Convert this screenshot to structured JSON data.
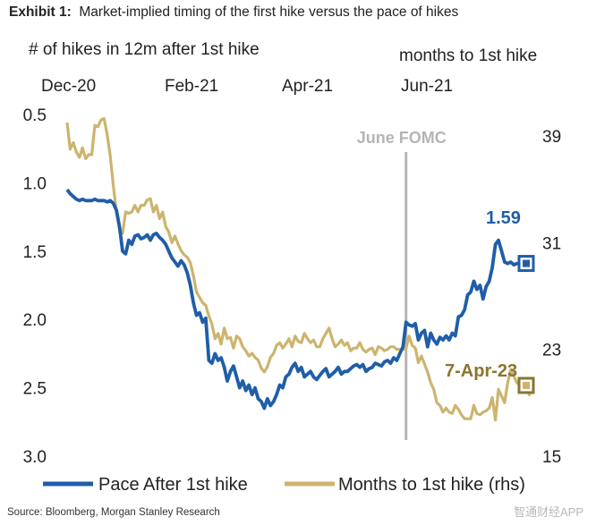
{
  "title_prefix": "Exhibit 1:",
  "title_text": "Market-implied timing of the first hike versus the pace of hikes",
  "source": "Source: Bloomberg, Morgan Stanley Research",
  "watermark": "智通财经APP",
  "chart_data": {
    "type": "line",
    "left_axis_title": "# of hikes in 12m after 1st hike",
    "right_axis_title": "months to 1st hike",
    "x_labels": [
      "Dec-20",
      "Feb-21",
      "Apr-21",
      "Jun-21"
    ],
    "left_ticks": [
      "0.5",
      "1.0",
      "1.5",
      "2.0",
      "2.5",
      "3.0"
    ],
    "right_ticks": [
      "39",
      "31",
      "23",
      "15"
    ],
    "left_ylim": [
      0.5,
      3.0
    ],
    "left_inverted": true,
    "right_ylim": [
      15,
      39
    ],
    "vline_label": "June FOMC",
    "vline_index": 110,
    "colors": {
      "pace": "#1f5ea8",
      "months": "#cdb46e",
      "vline": "#b5b5b5",
      "annotation_months": "#8a7530"
    },
    "series": [
      {
        "name": "Pace After 1st hike",
        "axis": "left",
        "end_label": "1.59",
        "values": [
          1.05,
          1.08,
          1.1,
          1.12,
          1.13,
          1.12,
          1.13,
          1.13,
          1.13,
          1.12,
          1.13,
          1.13,
          1.13,
          1.14,
          1.13,
          1.15,
          1.2,
          1.32,
          1.5,
          1.52,
          1.42,
          1.45,
          1.39,
          1.38,
          1.41,
          1.4,
          1.38,
          1.42,
          1.38,
          1.37,
          1.4,
          1.42,
          1.45,
          1.5,
          1.55,
          1.58,
          1.61,
          1.57,
          1.6,
          1.66,
          1.75,
          1.88,
          1.97,
          1.95,
          2.02,
          1.99,
          2.3,
          2.32,
          2.25,
          2.3,
          2.28,
          2.35,
          2.45,
          2.38,
          2.34,
          2.42,
          2.5,
          2.45,
          2.52,
          2.48,
          2.55,
          2.5,
          2.58,
          2.6,
          2.65,
          2.58,
          2.63,
          2.6,
          2.55,
          2.48,
          2.5,
          2.42,
          2.4,
          2.35,
          2.32,
          2.38,
          2.35,
          2.42,
          2.4,
          2.38,
          2.42,
          2.44,
          2.41,
          2.38,
          2.36,
          2.42,
          2.4,
          2.38,
          2.35,
          2.4,
          2.38,
          2.38,
          2.36,
          2.34,
          2.33,
          2.35,
          2.33,
          2.38,
          2.36,
          2.35,
          2.32,
          2.33,
          2.34,
          2.31,
          2.3,
          2.32,
          2.28,
          2.3,
          2.25,
          2.2,
          2.02,
          2.04,
          2.05,
          2.03,
          2.15,
          2.1,
          2.08,
          2.2,
          2.1,
          2.15,
          2.18,
          2.13,
          2.15,
          2.12,
          2.15,
          2.1,
          2.12,
          1.98,
          1.97,
          1.93,
          1.82,
          1.8,
          1.72,
          1.78,
          1.75,
          1.85,
          1.76,
          1.72,
          1.62,
          1.45,
          1.42,
          1.5,
          1.58,
          1.59,
          1.58,
          1.6,
          1.59,
          1.59,
          1.59,
          1.59
        ]
      },
      {
        "name": "Months to 1st hike (rhs)",
        "axis": "right",
        "end_label": "7-Apr-23",
        "values": [
          40,
          38,
          38.5,
          37.8,
          37.4,
          38.1,
          37.3,
          37.6,
          37.6,
          39.8,
          39.7,
          40.2,
          40.3,
          39.1,
          37.5,
          35.3,
          33.3,
          32,
          31.7,
          33.3,
          33.2,
          33.3,
          33.8,
          33.3,
          33.8,
          33.8,
          34.2,
          34.3,
          33.3,
          33.8,
          32.8,
          33.3,
          32.2,
          31.8,
          31,
          31.5,
          30.9,
          30.4,
          30.1,
          29.9,
          29.5,
          28.5,
          27.3,
          26.9,
          26.5,
          26.3,
          25.5,
          24.9,
          23.8,
          24.2,
          23.4,
          24.6,
          23.8,
          23.9,
          23.1,
          24,
          23.8,
          23.2,
          22.9,
          22.5,
          22.7,
          22.4,
          22.2,
          21.6,
          21.3,
          21.7,
          22.4,
          22.7,
          23.3,
          23.5,
          23.1,
          23.4,
          23.8,
          23.2,
          24,
          23.6,
          23.5,
          24.2,
          23.8,
          23.5,
          23.7,
          23.2,
          23.2,
          23.8,
          24.2,
          24.6,
          23.8,
          23.2,
          23.4,
          23.7,
          23.3,
          23.5,
          22.9,
          23.1,
          23.1,
          23.5,
          23,
          22.8,
          23,
          23.1,
          22.6,
          23.2,
          23.1,
          22.9,
          23,
          23.2,
          23.2,
          23,
          23,
          23,
          23.1,
          24,
          23.3,
          23.1,
          22,
          22.5,
          21.9,
          21.3,
          20.5,
          20,
          19,
          18.8,
          18.3,
          18.6,
          18.3,
          18.2,
          18.8,
          18.5,
          18.1,
          17.8,
          17.8,
          17.8,
          18.8,
          18.2,
          18.1,
          18.3,
          18.4,
          18.6,
          19.4,
          17.7,
          20,
          19.5,
          19,
          20.5,
          21.5,
          21,
          20.5,
          20.3,
          20,
          20.3,
          19.6,
          20
        ]
      }
    ],
    "annotations": [
      {
        "text": "1.59",
        "series": 0
      },
      {
        "text": "7-Apr-23",
        "series": 1
      }
    ]
  },
  "legend": [
    {
      "label": "Pace After 1st hike",
      "color_key": "pace"
    },
    {
      "label": "Months to 1st hike (rhs)",
      "color_key": "months"
    }
  ]
}
